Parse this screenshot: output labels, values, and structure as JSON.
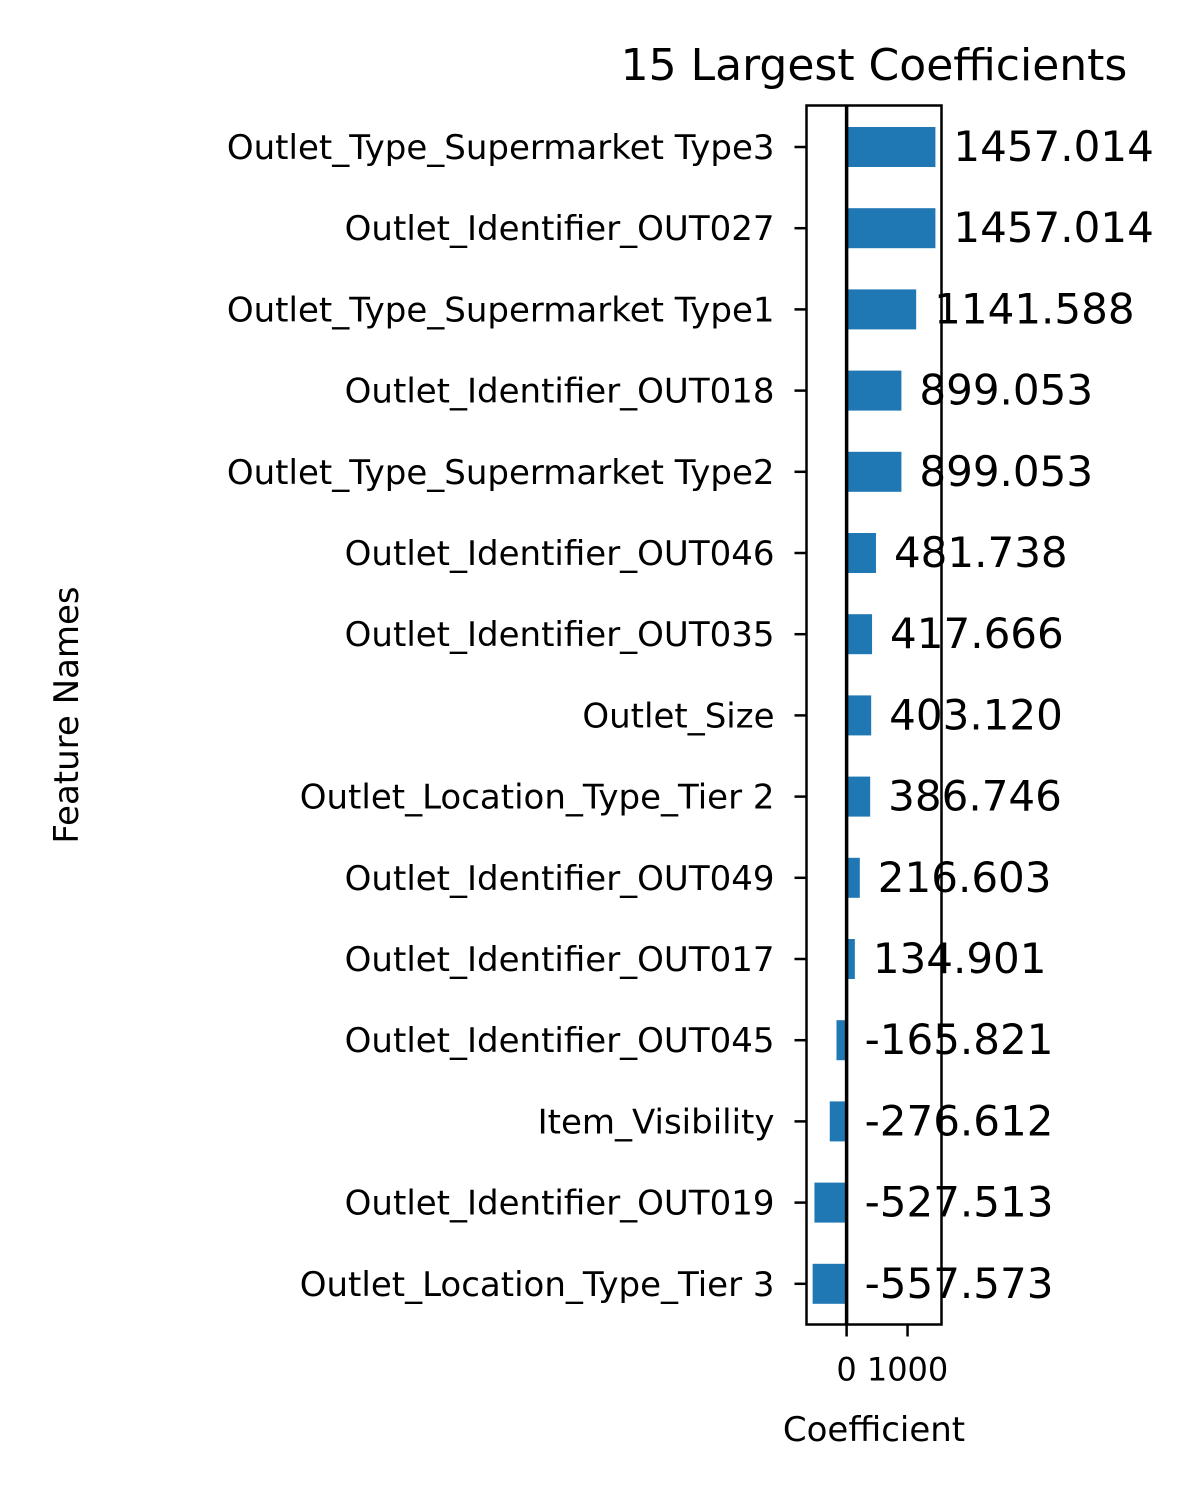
{
  "chart_data": {
    "type": "bar",
    "orientation": "horizontal",
    "title": "15 Largest Coefficients",
    "xlabel": "Coefficient",
    "ylabel": "Feature Names",
    "categories": [
      "Outlet_Type_Supermarket Type3",
      "Outlet_Identifier_OUT027",
      "Outlet_Type_Supermarket Type1",
      "Outlet_Identifier_OUT018",
      "Outlet_Type_Supermarket Type2",
      "Outlet_Identifier_OUT046",
      "Outlet_Identifier_OUT035",
      "Outlet_Size",
      "Outlet_Location_Type_Tier 2",
      "Outlet_Identifier_OUT049",
      "Outlet_Identifier_OUT017",
      "Outlet_Identifier_OUT045",
      "Item_Visibility",
      "Outlet_Identifier_OUT019",
      "Outlet_Location_Type_Tier 3"
    ],
    "values": [
      1457.014,
      1457.014,
      1141.588,
      899.053,
      899.053,
      481.738,
      417.666,
      403.12,
      386.746,
      216.603,
      134.901,
      -165.821,
      -276.612,
      -527.513,
      -557.573
    ],
    "value_labels": [
      "1457.014",
      "1457.014",
      "1141.588",
      "899.053",
      "899.053",
      "481.738",
      "417.666",
      "403.120",
      "386.746",
      "216.603",
      "134.901",
      "-165.821",
      "-276.612",
      "-527.513",
      "-557.573"
    ],
    "xlim": [
      -658,
      1557
    ],
    "x_ticks": [
      0,
      1000
    ],
    "x_tick_labels": [
      "0",
      "1000"
    ],
    "zero_line": true,
    "grid": false,
    "bar_color": "#1f77b4"
  }
}
